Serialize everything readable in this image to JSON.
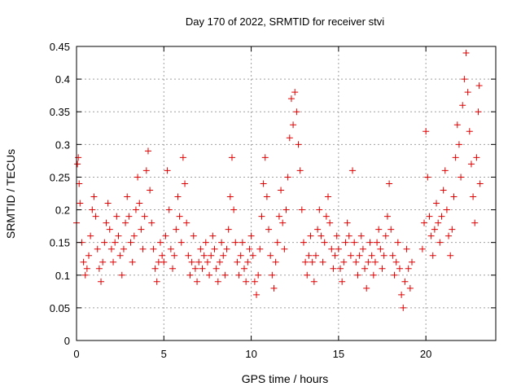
{
  "chart_data": {
    "type": "scatter",
    "title": "Day 170 of 2022, SRMTID for receiver stvi",
    "xlabel": "GPS time / hours",
    "ylabel": "SRMTID / TECUs",
    "xlim": [
      0,
      24
    ],
    "ylim": [
      0,
      0.45
    ],
    "xticks": [
      "0",
      "5",
      "10",
      "15",
      "20"
    ],
    "yticks": [
      "0",
      "0.05",
      "0.1",
      "0.15",
      "0.2",
      "0.25",
      "0.3",
      "0.35",
      "0.4",
      "0.45"
    ],
    "grid": true,
    "marker": "+",
    "series": [
      {
        "name": "stvi",
        "color": "#e00000",
        "points": [
          [
            0.0,
            0.18
          ],
          [
            0.05,
            0.27
          ],
          [
            0.1,
            0.28
          ],
          [
            0.15,
            0.24
          ],
          [
            0.2,
            0.21
          ],
          [
            0.3,
            0.15
          ],
          [
            0.4,
            0.12
          ],
          [
            0.5,
            0.1
          ],
          [
            0.6,
            0.11
          ],
          [
            0.7,
            0.13
          ],
          [
            0.8,
            0.16
          ],
          [
            0.9,
            0.2
          ],
          [
            1.0,
            0.22
          ],
          [
            1.1,
            0.19
          ],
          [
            1.2,
            0.14
          ],
          [
            1.3,
            0.11
          ],
          [
            1.4,
            0.09
          ],
          [
            1.5,
            0.12
          ],
          [
            1.6,
            0.15
          ],
          [
            1.7,
            0.18
          ],
          [
            1.8,
            0.21
          ],
          [
            1.9,
            0.17
          ],
          [
            2.0,
            0.14
          ],
          [
            2.1,
            0.12
          ],
          [
            2.2,
            0.15
          ],
          [
            2.3,
            0.19
          ],
          [
            2.4,
            0.16
          ],
          [
            2.5,
            0.13
          ],
          [
            2.6,
            0.1
          ],
          [
            2.7,
            0.14
          ],
          [
            2.8,
            0.18
          ],
          [
            2.9,
            0.22
          ],
          [
            3.0,
            0.19
          ],
          [
            3.1,
            0.15
          ],
          [
            3.2,
            0.12
          ],
          [
            3.3,
            0.16
          ],
          [
            3.4,
            0.2
          ],
          [
            3.5,
            0.25
          ],
          [
            3.6,
            0.21
          ],
          [
            3.7,
            0.17
          ],
          [
            3.8,
            0.14
          ],
          [
            3.9,
            0.19
          ],
          [
            4.0,
            0.26
          ],
          [
            4.1,
            0.29
          ],
          [
            4.2,
            0.23
          ],
          [
            4.3,
            0.18
          ],
          [
            4.4,
            0.14
          ],
          [
            4.5,
            0.11
          ],
          [
            4.6,
            0.09
          ],
          [
            4.7,
            0.12
          ],
          [
            4.8,
            0.15
          ],
          [
            4.9,
            0.13
          ],
          [
            5.0,
            0.12
          ],
          [
            5.1,
            0.16
          ],
          [
            5.2,
            0.26
          ],
          [
            5.3,
            0.2
          ],
          [
            5.4,
            0.14
          ],
          [
            5.5,
            0.11
          ],
          [
            5.6,
            0.13
          ],
          [
            5.7,
            0.17
          ],
          [
            5.8,
            0.22
          ],
          [
            5.9,
            0.19
          ],
          [
            6.0,
            0.15
          ],
          [
            6.1,
            0.28
          ],
          [
            6.2,
            0.24
          ],
          [
            6.3,
            0.18
          ],
          [
            6.4,
            0.13
          ],
          [
            6.5,
            0.1
          ],
          [
            6.6,
            0.12
          ],
          [
            6.7,
            0.16
          ],
          [
            6.8,
            0.11
          ],
          [
            6.9,
            0.09
          ],
          [
            7.0,
            0.12
          ],
          [
            7.1,
            0.14
          ],
          [
            7.2,
            0.11
          ],
          [
            7.3,
            0.13
          ],
          [
            7.4,
            0.15
          ],
          [
            7.5,
            0.12
          ],
          [
            7.6,
            0.1
          ],
          [
            7.7,
            0.13
          ],
          [
            7.8,
            0.16
          ],
          [
            7.9,
            0.14
          ],
          [
            8.0,
            0.11
          ],
          [
            8.1,
            0.09
          ],
          [
            8.2,
            0.12
          ],
          [
            8.3,
            0.15
          ],
          [
            8.4,
            0.13
          ],
          [
            8.5,
            0.1
          ],
          [
            8.6,
            0.14
          ],
          [
            8.7,
            0.17
          ],
          [
            8.8,
            0.22
          ],
          [
            8.9,
            0.28
          ],
          [
            9.0,
            0.2
          ],
          [
            9.1,
            0.15
          ],
          [
            9.2,
            0.12
          ],
          [
            9.3,
            0.1
          ],
          [
            9.4,
            0.13
          ],
          [
            9.5,
            0.15
          ],
          [
            9.6,
            0.11
          ],
          [
            9.7,
            0.09
          ],
          [
            9.8,
            0.12
          ],
          [
            9.9,
            0.14
          ],
          [
            10.0,
            0.16
          ],
          [
            10.1,
            0.13
          ],
          [
            10.2,
            0.09
          ],
          [
            10.3,
            0.07
          ],
          [
            10.4,
            0.1
          ],
          [
            10.5,
            0.14
          ],
          [
            10.6,
            0.19
          ],
          [
            10.7,
            0.24
          ],
          [
            10.8,
            0.28
          ],
          [
            10.9,
            0.22
          ],
          [
            11.0,
            0.17
          ],
          [
            11.1,
            0.13
          ],
          [
            11.2,
            0.1
          ],
          [
            11.3,
            0.08
          ],
          [
            11.4,
            0.12
          ],
          [
            11.5,
            0.15
          ],
          [
            11.6,
            0.19
          ],
          [
            11.7,
            0.23
          ],
          [
            11.8,
            0.18
          ],
          [
            11.9,
            0.14
          ],
          [
            12.0,
            0.2
          ],
          [
            12.1,
            0.25
          ],
          [
            12.2,
            0.31
          ],
          [
            12.3,
            0.37
          ],
          [
            12.4,
            0.33
          ],
          [
            12.5,
            0.38
          ],
          [
            12.6,
            0.35
          ],
          [
            12.7,
            0.3
          ],
          [
            12.8,
            0.26
          ],
          [
            12.9,
            0.2
          ],
          [
            13.0,
            0.15
          ],
          [
            13.1,
            0.12
          ],
          [
            13.2,
            0.1
          ],
          [
            13.3,
            0.13
          ],
          [
            13.4,
            0.16
          ],
          [
            13.5,
            0.12
          ],
          [
            13.6,
            0.09
          ],
          [
            13.7,
            0.13
          ],
          [
            13.8,
            0.17
          ],
          [
            13.9,
            0.2
          ],
          [
            14.0,
            0.16
          ],
          [
            14.1,
            0.12
          ],
          [
            14.2,
            0.15
          ],
          [
            14.3,
            0.19
          ],
          [
            14.4,
            0.22
          ],
          [
            14.5,
            0.18
          ],
          [
            14.6,
            0.14
          ],
          [
            14.7,
            0.11
          ],
          [
            14.8,
            0.13
          ],
          [
            14.9,
            0.16
          ],
          [
            15.0,
            0.14
          ],
          [
            15.1,
            0.11
          ],
          [
            15.2,
            0.09
          ],
          [
            15.3,
            0.12
          ],
          [
            15.4,
            0.15
          ],
          [
            15.5,
            0.18
          ],
          [
            15.6,
            0.16
          ],
          [
            15.7,
            0.13
          ],
          [
            15.8,
            0.26
          ],
          [
            15.9,
            0.15
          ],
          [
            16.0,
            0.12
          ],
          [
            16.1,
            0.1
          ],
          [
            16.2,
            0.13
          ],
          [
            16.3,
            0.16
          ],
          [
            16.4,
            0.14
          ],
          [
            16.5,
            0.11
          ],
          [
            16.6,
            0.08
          ],
          [
            16.7,
            0.12
          ],
          [
            16.8,
            0.15
          ],
          [
            16.9,
            0.13
          ],
          [
            17.0,
            0.1
          ],
          [
            17.1,
            0.12
          ],
          [
            17.2,
            0.15
          ],
          [
            17.3,
            0.17
          ],
          [
            17.4,
            0.14
          ],
          [
            17.5,
            0.11
          ],
          [
            17.6,
            0.13
          ],
          [
            17.7,
            0.16
          ],
          [
            17.8,
            0.19
          ],
          [
            17.9,
            0.24
          ],
          [
            18.0,
            0.17
          ],
          [
            18.1,
            0.13
          ],
          [
            18.2,
            0.1
          ],
          [
            18.3,
            0.12
          ],
          [
            18.4,
            0.15
          ],
          [
            18.5,
            0.11
          ],
          [
            18.6,
            0.07
          ],
          [
            18.7,
            0.05
          ],
          [
            18.8,
            0.09
          ],
          [
            18.9,
            0.14
          ],
          [
            19.0,
            0.11
          ],
          [
            19.1,
            0.08
          ],
          [
            19.2,
            0.12
          ],
          [
            19.8,
            0.14
          ],
          [
            19.9,
            0.18
          ],
          [
            20.0,
            0.32
          ],
          [
            20.1,
            0.25
          ],
          [
            20.2,
            0.19
          ],
          [
            20.3,
            0.16
          ],
          [
            20.4,
            0.13
          ],
          [
            20.5,
            0.17
          ],
          [
            20.6,
            0.21
          ],
          [
            20.7,
            0.18
          ],
          [
            20.8,
            0.15
          ],
          [
            20.9,
            0.19
          ],
          [
            21.0,
            0.23
          ],
          [
            21.1,
            0.26
          ],
          [
            21.2,
            0.2
          ],
          [
            21.3,
            0.16
          ],
          [
            21.4,
            0.13
          ],
          [
            21.5,
            0.17
          ],
          [
            21.6,
            0.22
          ],
          [
            21.7,
            0.28
          ],
          [
            21.8,
            0.33
          ],
          [
            21.9,
            0.3
          ],
          [
            22.0,
            0.25
          ],
          [
            22.1,
            0.36
          ],
          [
            22.2,
            0.4
          ],
          [
            22.3,
            0.44
          ],
          [
            22.4,
            0.38
          ],
          [
            22.5,
            0.32
          ],
          [
            22.6,
            0.27
          ],
          [
            22.7,
            0.22
          ],
          [
            22.8,
            0.18
          ],
          [
            22.9,
            0.28
          ],
          [
            23.0,
            0.35
          ],
          [
            23.05,
            0.39
          ],
          [
            23.1,
            0.24
          ]
        ]
      }
    ]
  }
}
